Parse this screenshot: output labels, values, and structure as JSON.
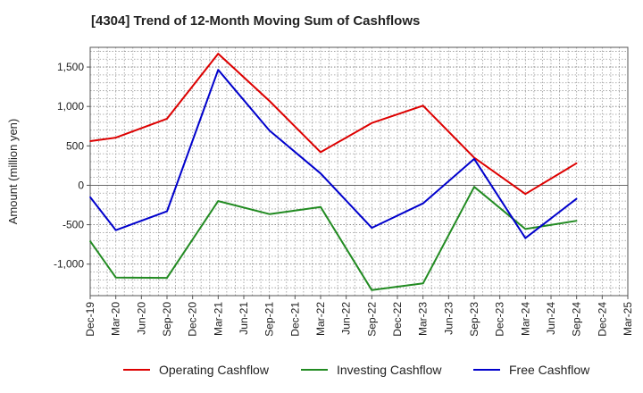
{
  "chart_data": {
    "type": "line",
    "title": "[4304]  Trend of 12-Month Moving Sum of Cashflows",
    "xlabel": "",
    "ylabel": "Amount (million yen)",
    "ylim": [
      -1400,
      1750
    ],
    "yticks": [
      -1000,
      -500,
      0,
      500,
      1000,
      1500
    ],
    "ytick_labels": [
      "-1,000",
      "-500",
      "0",
      "500",
      "1,000",
      "1,500"
    ],
    "categories": [
      "Dec-19",
      "Mar-20",
      "Jun-20",
      "Sep-20",
      "Dec-20",
      "Mar-21",
      "Jun-21",
      "Sep-21",
      "Dec-21",
      "Mar-22",
      "Jun-22",
      "Sep-22",
      "Dec-22",
      "Mar-23",
      "Jun-23",
      "Sep-23",
      "Dec-23",
      "Mar-24",
      "Jun-24",
      "Sep-24",
      "Dec-24",
      "Mar-25"
    ],
    "grid": true,
    "legend_position": "bottom",
    "series": [
      {
        "name": "Operating Cashflow",
        "color": "#dd0000",
        "values": [
          560,
          605,
          null,
          845,
          null,
          1670,
          null,
          1070,
          null,
          420,
          null,
          790,
          null,
          1010,
          null,
          350,
          null,
          -110,
          null,
          280,
          null,
          null
        ]
      },
      {
        "name": "Investing Cashflow",
        "color": "#228B22",
        "values": [
          -710,
          -1170,
          null,
          -1175,
          null,
          -200,
          null,
          -365,
          null,
          -275,
          null,
          -1330,
          null,
          -1245,
          null,
          -20,
          null,
          -555,
          null,
          -450,
          null,
          null
        ]
      },
      {
        "name": "Free Cashflow",
        "color": "#0000cc",
        "values": [
          -150,
          -570,
          null,
          -330,
          null,
          1465,
          null,
          695,
          null,
          150,
          null,
          -540,
          null,
          -230,
          null,
          335,
          null,
          -670,
          null,
          -170,
          null,
          null
        ]
      }
    ]
  }
}
